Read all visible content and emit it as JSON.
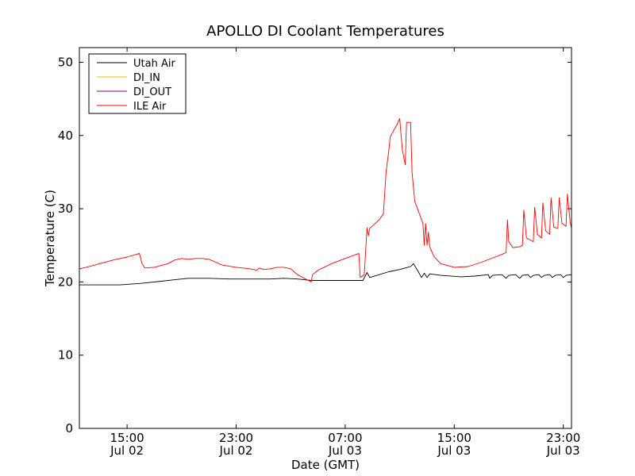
{
  "chart_data": {
    "type": "line",
    "title": "APOLLO DI Coolant Temperatures",
    "xlabel": "Date (GMT)",
    "ylabel": "Temperature (C)",
    "ylim": [
      0,
      52
    ],
    "xlim": [
      11.5,
      47.6
    ],
    "y_ticks": [
      "0",
      "10",
      "20",
      "30",
      "40",
      "50"
    ],
    "x_ticks": [
      {
        "x": 15,
        "time": "15:00",
        "date": "Jul 02"
      },
      {
        "x": 23,
        "time": "23:00",
        "date": "Jul 02"
      },
      {
        "x": 31,
        "time": "07:00",
        "date": "Jul 03"
      },
      {
        "x": 39,
        "time": "15:00",
        "date": "Jul 03"
      },
      {
        "x": 47,
        "time": "23:00",
        "date": "Jul 03"
      }
    ],
    "legend_position": "top-left",
    "series": [
      {
        "name": "Utah Air",
        "color": "#000000",
        "points": [
          [
            11.5,
            19.6
          ],
          [
            13,
            19.6
          ],
          [
            14.5,
            19.6
          ],
          [
            16,
            19.8
          ],
          [
            17.5,
            20.1
          ],
          [
            18.5,
            20.3
          ],
          [
            19.5,
            20.5
          ],
          [
            21,
            20.5
          ],
          [
            22.5,
            20.4
          ],
          [
            24,
            20.4
          ],
          [
            25.5,
            20.4
          ],
          [
            26.5,
            20.5
          ],
          [
            27.5,
            20.4
          ],
          [
            28.5,
            20.2
          ],
          [
            30,
            20.2
          ],
          [
            31.5,
            20.2
          ],
          [
            32.3,
            20.2
          ],
          [
            32.6,
            21.3
          ],
          [
            32.8,
            20.6
          ],
          [
            33.5,
            21.0
          ],
          [
            34.2,
            21.4
          ],
          [
            35.0,
            21.7
          ],
          [
            35.8,
            22.1
          ],
          [
            36.0,
            22.5
          ],
          [
            36.3,
            21.6
          ],
          [
            36.6,
            20.6
          ],
          [
            36.8,
            21.2
          ],
          [
            37.0,
            20.6
          ],
          [
            37.2,
            21.1
          ],
          [
            38,
            20.9
          ],
          [
            39.5,
            20.7
          ],
          [
            40.5,
            20.8
          ],
          [
            41.5,
            21.0
          ],
          [
            41.6,
            20.5
          ],
          [
            41.8,
            20.9
          ],
          [
            42.5,
            21.0
          ],
          [
            42.8,
            20.5
          ],
          [
            43.0,
            20.9
          ],
          [
            43.5,
            21.0
          ],
          [
            43.8,
            20.5
          ],
          [
            44.0,
            20.9
          ],
          [
            44.4,
            21.0
          ],
          [
            44.6,
            20.6
          ],
          [
            44.8,
            20.9
          ],
          [
            45.2,
            21.0
          ],
          [
            45.4,
            20.6
          ],
          [
            45.6,
            20.9
          ],
          [
            46.0,
            21.0
          ],
          [
            46.2,
            20.6
          ],
          [
            46.4,
            20.9
          ],
          [
            46.8,
            21.0
          ],
          [
            47.0,
            20.6
          ],
          [
            47.2,
            20.9
          ],
          [
            47.6,
            21.0
          ]
        ]
      },
      {
        "name": "DI_IN",
        "color": "#e8c000",
        "points": []
      },
      {
        "name": "DI_OUT",
        "color": "#800080",
        "points": []
      },
      {
        "name": "ILE Air",
        "color": "#ff0000",
        "points": [
          [
            11.5,
            21.8
          ],
          [
            12,
            22.0
          ],
          [
            13,
            22.5
          ],
          [
            14,
            23.0
          ],
          [
            15,
            23.4
          ],
          [
            15.9,
            23.9
          ],
          [
            16.1,
            22.5
          ],
          [
            16.3,
            21.9
          ],
          [
            17,
            22.0
          ],
          [
            18,
            22.5
          ],
          [
            18.5,
            23.0
          ],
          [
            19,
            23.2
          ],
          [
            19.5,
            23.1
          ],
          [
            20,
            23.2
          ],
          [
            20.5,
            23.2
          ],
          [
            21,
            23.1
          ],
          [
            21.5,
            22.7
          ],
          [
            22,
            22.3
          ],
          [
            23,
            22.0
          ],
          [
            24,
            21.8
          ],
          [
            24.5,
            21.6
          ],
          [
            24.7,
            21.9
          ],
          [
            25,
            21.7
          ],
          [
            25.5,
            21.8
          ],
          [
            26,
            22.0
          ],
          [
            26.5,
            22.0
          ],
          [
            27,
            21.8
          ],
          [
            27.5,
            21.0
          ],
          [
            28,
            20.5
          ],
          [
            28.5,
            20.0
          ],
          [
            28.6,
            21.0
          ],
          [
            29,
            21.6
          ],
          [
            30,
            22.5
          ],
          [
            31,
            23.2
          ],
          [
            32,
            23.9
          ],
          [
            32.1,
            20.6
          ],
          [
            32.4,
            21.0
          ],
          [
            32.6,
            27.4
          ],
          [
            32.7,
            26.3
          ],
          [
            32.8,
            27.3
          ],
          [
            33.5,
            28.5
          ],
          [
            33.8,
            29.3
          ],
          [
            34.0,
            35.0
          ],
          [
            34.2,
            38.0
          ],
          [
            34.3,
            39.8
          ],
          [
            34.5,
            40.5
          ],
          [
            34.8,
            41.5
          ],
          [
            35.0,
            42.3
          ],
          [
            35.1,
            40.0
          ],
          [
            35.2,
            38.0
          ],
          [
            35.4,
            36.0
          ],
          [
            35.5,
            41.8
          ],
          [
            35.8,
            41.8
          ],
          [
            35.9,
            35.0
          ],
          [
            36.1,
            31.0
          ],
          [
            36.5,
            29.0
          ],
          [
            36.7,
            28.0
          ],
          [
            36.8,
            25.0
          ],
          [
            36.9,
            28.0
          ],
          [
            37.0,
            25.0
          ],
          [
            37.1,
            26.8
          ],
          [
            37.2,
            24.8
          ],
          [
            37.5,
            23.5
          ],
          [
            38,
            22.5
          ],
          [
            39,
            22.0
          ],
          [
            40,
            22.1
          ],
          [
            41,
            22.7
          ],
          [
            42,
            23.4
          ],
          [
            42.8,
            24.0
          ],
          [
            42.9,
            28.5
          ],
          [
            43.0,
            25.5
          ],
          [
            43.3,
            24.7
          ],
          [
            43.8,
            24.8
          ],
          [
            44.0,
            25.0
          ],
          [
            44.1,
            29.8
          ],
          [
            44.3,
            26.0
          ],
          [
            44.8,
            25.5
          ],
          [
            44.9,
            30.2
          ],
          [
            45.1,
            26.5
          ],
          [
            45.4,
            26.0
          ],
          [
            45.5,
            30.8
          ],
          [
            45.7,
            27.0
          ],
          [
            46.0,
            26.5
          ],
          [
            46.1,
            31.5
          ],
          [
            46.3,
            27.5
          ],
          [
            46.6,
            27.3
          ],
          [
            46.7,
            31.5
          ],
          [
            46.9,
            28.0
          ],
          [
            47.2,
            27.6
          ],
          [
            47.3,
            32.0
          ],
          [
            47.5,
            28.2
          ],
          [
            47.6,
            27.3
          ]
        ]
      }
    ]
  }
}
